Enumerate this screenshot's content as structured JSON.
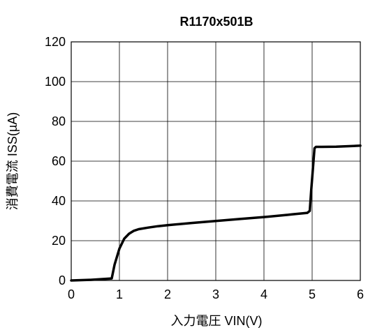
{
  "chart_data": {
    "type": "line",
    "title": "R1170x501B",
    "xlabel": "入力電圧 VIN(V)",
    "ylabel": "消費電流 ISS(µA)",
    "xlim": [
      0,
      6
    ],
    "ylim": [
      0,
      120
    ],
    "xticks": [
      0,
      1,
      2,
      3,
      4,
      5,
      6
    ],
    "yticks": [
      0,
      20,
      40,
      60,
      80,
      100,
      120
    ],
    "xtick_labels": [
      "0",
      "1",
      "2",
      "3",
      "4",
      "5",
      "6"
    ],
    "ytick_labels": [
      "0",
      "20",
      "40",
      "60",
      "80",
      "100",
      "120"
    ],
    "grid": true,
    "legend": "none",
    "line_color": "#000000",
    "series": [
      {
        "x": [
          0,
          0.4,
          0.84,
          0.9,
          1.0,
          1.1,
          1.2,
          1.3,
          1.4,
          1.6,
          1.8,
          2.0,
          2.5,
          3.0,
          3.5,
          4.0,
          4.5,
          4.6,
          4.9,
          4.95,
          4.98,
          5.05,
          5.08,
          5.2,
          5.5,
          6.0
        ],
        "y": [
          0,
          0.3,
          1.0,
          8.0,
          16.0,
          21.0,
          23.5,
          25.0,
          25.8,
          26.6,
          27.3,
          27.8,
          28.9,
          29.9,
          30.9,
          31.9,
          33.0,
          33.3,
          34.0,
          35.0,
          45.0,
          66.5,
          67.2,
          67.2,
          67.3,
          67.8
        ]
      }
    ]
  }
}
